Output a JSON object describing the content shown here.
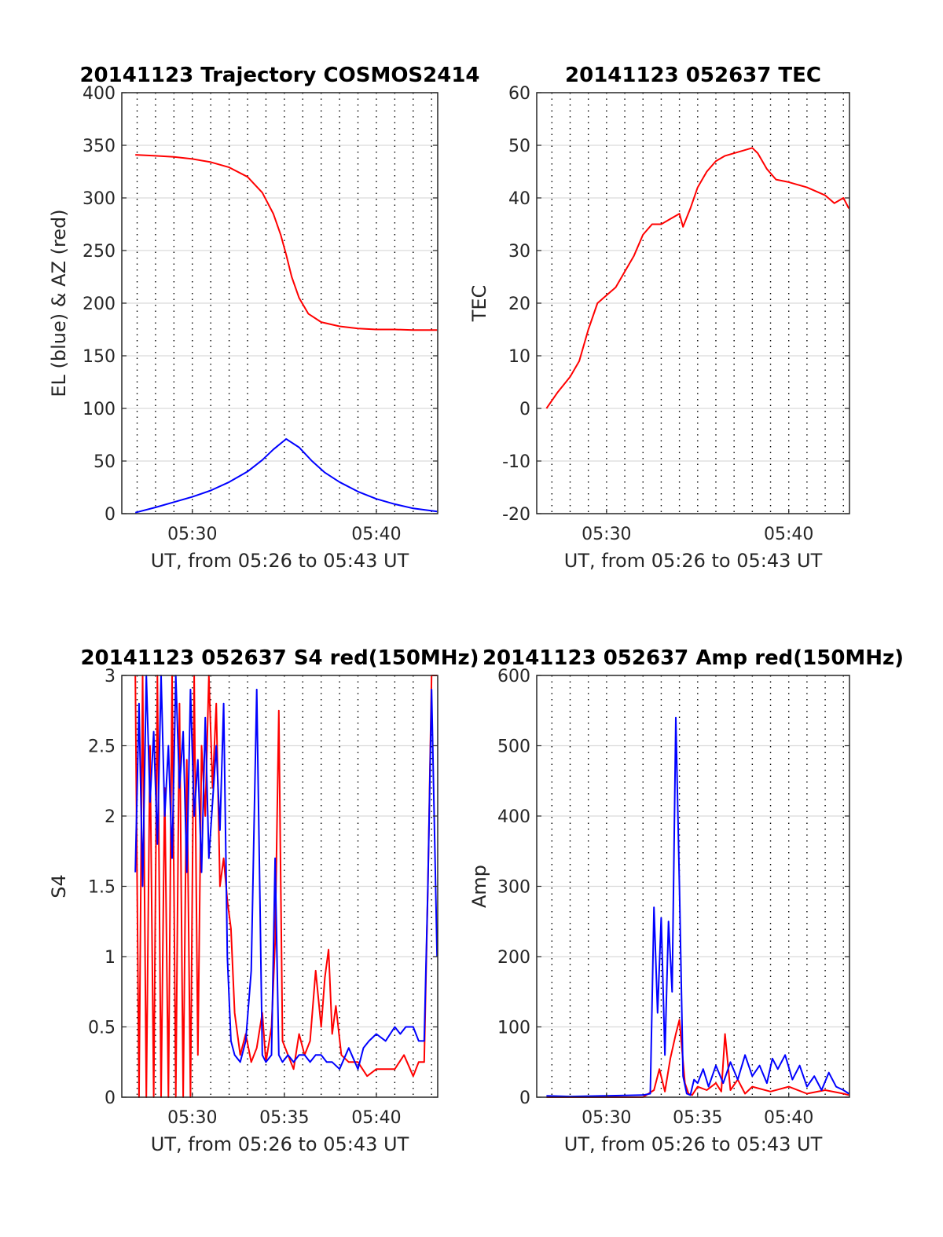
{
  "colors": {
    "red": "#ff0000",
    "blue": "#0000ff",
    "grid_major": "#d9d9d9",
    "grid_minor": "#000000",
    "axes": "#262626"
  },
  "chart_data": [
    {
      "type": "line",
      "title": "20141123 Trajectory COSMOS2414",
      "xlabel": "UT, from 05:26 to 05:43 UT",
      "ylabel": "EL (blue) & AZ (red)",
      "xlim": [
        "05:26:10",
        "05:43:20"
      ],
      "ylim": [
        0,
        400
      ],
      "x_tick_labels": [
        "05:30",
        "05:40"
      ],
      "y_tick_labels": [
        "0",
        "50",
        "100",
        "150",
        "200",
        "250",
        "300",
        "350",
        "400"
      ],
      "grid": true,
      "series": [
        {
          "color": "red",
          "x_minutes": [
            26.9,
            28.0,
            29.0,
            30.0,
            31.0,
            32.0,
            33.0,
            33.8,
            34.4,
            34.8,
            35.1,
            35.4,
            35.8,
            36.3,
            37.0,
            38.0,
            39.0,
            40.0,
            41.0,
            42.0,
            43.3
          ],
          "values": [
            341,
            340,
            339,
            337,
            334,
            329,
            320,
            305,
            285,
            265,
            246,
            225,
            205,
            190,
            182,
            178,
            176,
            175,
            175,
            174.5,
            174.5
          ]
        },
        {
          "color": "blue",
          "x_minutes": [
            26.9,
            28.0,
            29.0,
            30.0,
            31.0,
            32.0,
            33.0,
            33.8,
            34.4,
            35.1,
            35.8,
            36.5,
            37.2,
            38.0,
            39.0,
            40.0,
            41.0,
            42.0,
            43.3
          ],
          "values": [
            1,
            6,
            11,
            16,
            22,
            30,
            40,
            51,
            61,
            71,
            63,
            50,
            39,
            30,
            21,
            14,
            9,
            5,
            2
          ]
        }
      ]
    },
    {
      "type": "line",
      "title": "20141123 052637 TEC",
      "xlabel": "UT, from 05:26 to 05:43 UT",
      "ylabel": "TEC",
      "xlim": [
        "05:26:10",
        "05:43:20"
      ],
      "ylim": [
        -20,
        60
      ],
      "x_tick_labels": [
        "05:30",
        "05:40"
      ],
      "y_tick_labels": [
        "-20",
        "-10",
        "0",
        "10",
        "20",
        "30",
        "40",
        "50",
        "60"
      ],
      "grid": true,
      "series": [
        {
          "color": "red",
          "x_minutes": [
            26.7,
            27.3,
            28.0,
            28.5,
            29.0,
            29.5,
            30.0,
            30.5,
            31.0,
            31.5,
            32.0,
            32.5,
            33.0,
            33.5,
            34.0,
            34.2,
            34.6,
            35.0,
            35.5,
            36.0,
            36.5,
            37.0,
            37.5,
            38.0,
            38.3,
            38.8,
            39.3,
            40.0,
            41.0,
            42.0,
            42.5,
            43.0,
            43.3
          ],
          "values": [
            0,
            3,
            6,
            9,
            15,
            20,
            21.5,
            23,
            26,
            29,
            33,
            35,
            35,
            36,
            37,
            34.5,
            38,
            42,
            45,
            47,
            48,
            48.5,
            49,
            49.5,
            48.5,
            45.5,
            43.5,
            43,
            42,
            40.5,
            39,
            40,
            38
          ]
        }
      ]
    },
    {
      "type": "line",
      "title": "20141123 052637 S4 red(150MHz)",
      "xlabel": "UT, from 05:26 to 05:43 UT",
      "ylabel": "S4",
      "xlim": [
        "05:26:10",
        "05:43:20"
      ],
      "ylim": [
        0,
        3
      ],
      "x_tick_labels": [
        "05:30",
        "05:35",
        "05:40"
      ],
      "y_tick_labels": [
        "0",
        "0.5",
        "1",
        "1.5",
        "2",
        "2.5",
        "3"
      ],
      "grid": true,
      "series": [
        {
          "color": "red",
          "x_minutes": [
            26.9,
            27.1,
            27.3,
            27.5,
            27.7,
            27.9,
            28.1,
            28.3,
            28.5,
            28.7,
            28.9,
            29.1,
            29.3,
            29.5,
            29.7,
            29.9,
            30.1,
            30.3,
            30.5,
            30.7,
            30.9,
            31.1,
            31.3,
            31.5,
            31.7,
            31.9,
            32.1,
            32.3,
            32.6,
            32.9,
            33.2,
            33.5,
            33.8,
            34.0,
            34.3,
            34.5,
            34.7,
            34.9,
            35.2,
            35.5,
            35.8,
            36.1,
            36.4,
            36.7,
            37.0,
            37.2,
            37.4,
            37.6,
            37.8,
            38.1,
            38.5,
            39.0,
            39.5,
            40.0,
            40.5,
            41.0,
            41.5,
            42.0,
            42.3,
            42.6,
            42.8,
            43.0,
            43.3
          ],
          "values": [
            3.0,
            0.0,
            3.0,
            0.0,
            2.5,
            0.0,
            3.0,
            0.0,
            2.2,
            0.0,
            3.0,
            0.0,
            2.8,
            0.0,
            2.4,
            0.0,
            3.0,
            0.3,
            2.5,
            2.0,
            3.0,
            2.2,
            2.8,
            1.5,
            1.7,
            1.4,
            1.2,
            0.6,
            0.3,
            0.45,
            0.25,
            0.35,
            0.6,
            0.25,
            0.5,
            1.1,
            2.75,
            0.4,
            0.3,
            0.2,
            0.45,
            0.3,
            0.4,
            0.9,
            0.5,
            0.85,
            1.05,
            0.45,
            0.65,
            0.3,
            0.25,
            0.25,
            0.15,
            0.2,
            0.2,
            0.2,
            0.3,
            0.15,
            0.25,
            0.25,
            1.5,
            3.0,
            3.0
          ]
        },
        {
          "color": "blue",
          "x_minutes": [
            26.9,
            27.1,
            27.3,
            27.5,
            27.7,
            27.9,
            28.1,
            28.3,
            28.5,
            28.7,
            28.9,
            29.1,
            29.3,
            29.5,
            29.7,
            29.9,
            30.1,
            30.3,
            30.5,
            30.7,
            30.9,
            31.1,
            31.3,
            31.5,
            31.7,
            31.9,
            32.1,
            32.3,
            32.6,
            32.9,
            33.2,
            33.5,
            33.8,
            34.0,
            34.3,
            34.5,
            34.7,
            34.9,
            35.2,
            35.5,
            35.8,
            36.1,
            36.4,
            36.7,
            37.0,
            37.3,
            37.6,
            38.0,
            38.5,
            39.0,
            39.3,
            39.6,
            40.0,
            40.5,
            41.0,
            41.3,
            41.6,
            42.0,
            42.3,
            42.6,
            42.8,
            43.0,
            43.3
          ],
          "values": [
            1.6,
            2.8,
            1.5,
            3.0,
            2.1,
            2.6,
            1.8,
            3.0,
            2.0,
            2.5,
            1.7,
            3.0,
            2.2,
            2.6,
            1.6,
            2.9,
            2.0,
            2.4,
            1.6,
            2.7,
            1.7,
            2.1,
            2.5,
            1.9,
            2.8,
            1.0,
            0.4,
            0.3,
            0.25,
            0.4,
            0.9,
            2.9,
            0.3,
            0.25,
            0.3,
            1.7,
            0.3,
            0.25,
            0.3,
            0.25,
            0.3,
            0.3,
            0.25,
            0.3,
            0.3,
            0.25,
            0.25,
            0.2,
            0.35,
            0.2,
            0.35,
            0.4,
            0.45,
            0.4,
            0.5,
            0.45,
            0.5,
            0.5,
            0.4,
            0.4,
            1.5,
            2.9,
            1.0
          ]
        }
      ]
    },
    {
      "type": "line",
      "title": "20141123 052637 Amp red(150MHz)",
      "xlabel": "UT, from 05:26 to 05:43 UT",
      "ylabel": "Amp",
      "xlim": [
        "05:26:10",
        "05:43:20"
      ],
      "ylim": [
        0,
        600
      ],
      "x_tick_labels": [
        "05:30",
        "05:35",
        "05:40"
      ],
      "y_tick_labels": [
        "0",
        "100",
        "200",
        "300",
        "400",
        "500",
        "600"
      ],
      "grid": true,
      "series": [
        {
          "color": "red",
          "x_minutes": [
            26.7,
            30.0,
            32.0,
            32.6,
            32.9,
            33.2,
            33.5,
            33.8,
            34.0,
            34.3,
            34.5,
            34.7,
            35.0,
            35.5,
            36.0,
            36.3,
            36.5,
            36.8,
            37.2,
            37.6,
            38.0,
            39.0,
            40.0,
            41.0,
            42.0,
            43.0,
            43.3
          ],
          "values": [
            0,
            0,
            0,
            10,
            40,
            8,
            55,
            90,
            110,
            20,
            5,
            3,
            15,
            10,
            20,
            8,
            90,
            10,
            25,
            5,
            15,
            8,
            15,
            5,
            10,
            5,
            3
          ]
        },
        {
          "color": "blue",
          "x_minutes": [
            26.7,
            28.0,
            30.0,
            32.0,
            32.4,
            32.6,
            32.8,
            33.0,
            33.2,
            33.4,
            33.6,
            33.8,
            34.0,
            34.2,
            34.4,
            34.6,
            34.8,
            35.0,
            35.3,
            35.6,
            36.0,
            36.4,
            36.8,
            37.2,
            37.6,
            38.0,
            38.4,
            38.8,
            39.1,
            39.4,
            39.8,
            40.2,
            40.6,
            41.0,
            41.4,
            41.8,
            42.2,
            42.6,
            43.0,
            43.3
          ],
          "values": [
            2,
            1,
            2,
            3,
            5,
            270,
            120,
            255,
            60,
            250,
            150,
            540,
            300,
            30,
            5,
            3,
            25,
            20,
            40,
            15,
            45,
            20,
            50,
            25,
            60,
            30,
            45,
            20,
            55,
            40,
            60,
            25,
            45,
            15,
            30,
            10,
            35,
            15,
            10,
            5
          ]
        }
      ]
    }
  ]
}
